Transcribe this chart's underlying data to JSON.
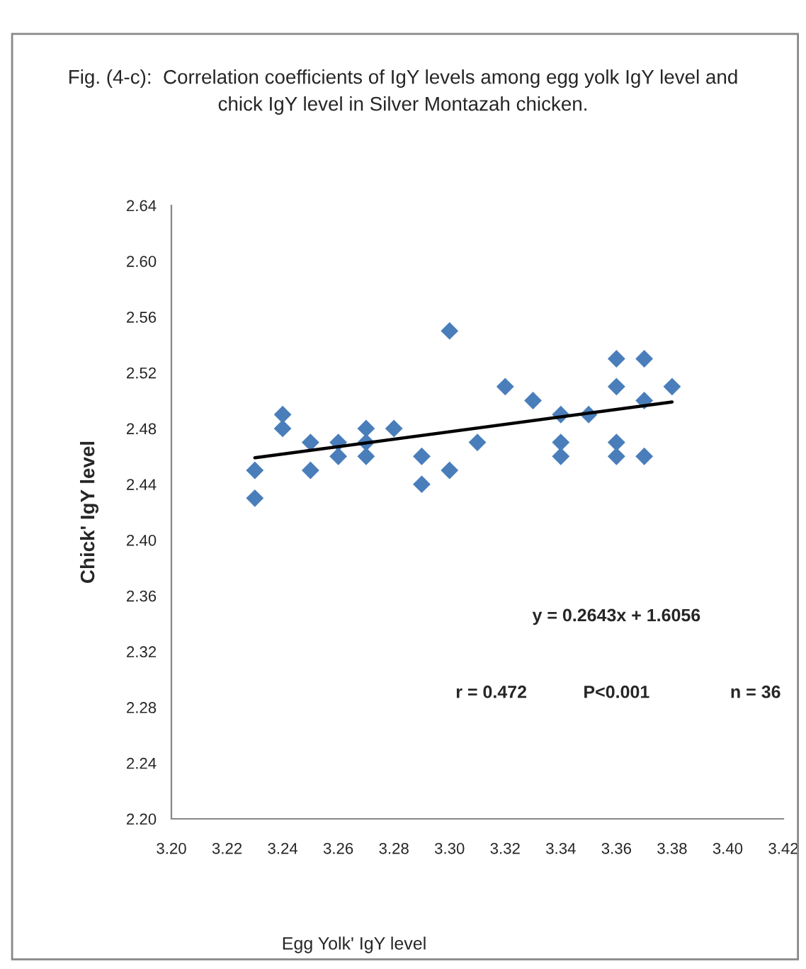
{
  "chart_data": {
    "type": "scatter",
    "title": "Fig. (4-c):  Correlation coefficients of IgY levels among egg yolk IgY level and\nchick IgY level in Silver Montazah chicken.",
    "xlabel": "Egg Yolk' IgY level",
    "ylabel": "Chick' IgY level",
    "xlim": [
      3.2,
      3.42
    ],
    "xticks": [
      {
        "value": 3.2,
        "label": "3.20"
      },
      {
        "value": 3.22,
        "label": "3.22"
      },
      {
        "value": 3.24,
        "label": "3.24"
      },
      {
        "value": 3.26,
        "label": "3.26"
      },
      {
        "value": 3.28,
        "label": "3.28"
      },
      {
        "value": 3.3,
        "label": "3.30"
      },
      {
        "value": 3.32,
        "label": "3.32"
      },
      {
        "value": 3.34,
        "label": "3.34"
      },
      {
        "value": 3.36,
        "label": "3.36"
      },
      {
        "value": 3.38,
        "label": "3.38"
      },
      {
        "value": 3.4,
        "label": "3.40"
      },
      {
        "value": 3.42,
        "label": "3.42"
      }
    ],
    "ylim": [
      2.2,
      2.64
    ],
    "yticks": [
      {
        "value": 2.2,
        "label": "2.20"
      },
      2.24,
      2.28,
      2.32,
      2.36,
      {
        "value": 2.4,
        "label": "2.40"
      },
      2.44,
      2.48,
      2.52,
      2.56,
      {
        "value": 2.6,
        "label": "2.60"
      },
      2.64
    ],
    "grid": false,
    "legend": false,
    "series": [
      {
        "color": "#4a7ebb",
        "marker": "diamond",
        "x": [
          3.23,
          3.23,
          3.24,
          3.24,
          3.25,
          3.25,
          3.26,
          3.26,
          3.27,
          3.27,
          3.27,
          3.28,
          3.29,
          3.29,
          3.3,
          3.3,
          3.31,
          3.32,
          3.33,
          3.34,
          3.34,
          3.34,
          3.35,
          3.36,
          3.36,
          3.36,
          3.36,
          3.37,
          3.37,
          3.37,
          3.38
        ],
        "values": [
          2.45,
          2.43,
          2.49,
          2.48,
          2.47,
          2.45,
          2.47,
          2.46,
          2.48,
          2.47,
          2.46,
          2.48,
          2.46,
          2.44,
          2.55,
          2.45,
          2.47,
          2.51,
          2.5,
          2.49,
          2.47,
          2.46,
          2.49,
          2.53,
          2.51,
          2.47,
          2.46,
          2.53,
          2.5,
          2.46,
          2.51
        ]
      },
      {
        "type": "line",
        "color": "#000000",
        "line_style": "solid",
        "marker": "none",
        "x": [
          3.23,
          3.38
        ],
        "values": [
          2.459,
          2.499
        ]
      }
    ],
    "annotations": [
      "y = 0.2643x + 1.6056",
      "r = 0.472",
      "P<0.001",
      "n = 36"
    ]
  }
}
